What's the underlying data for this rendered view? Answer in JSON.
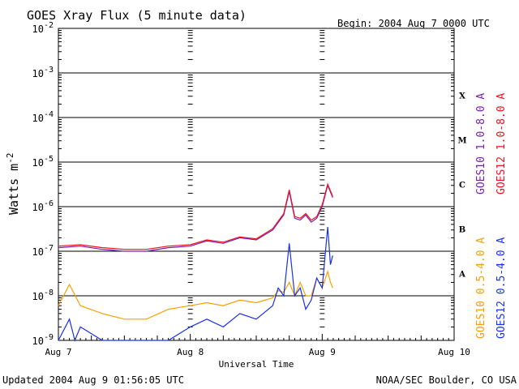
{
  "header": {
    "title": "GOES Xray Flux (5 minute data)",
    "begin": "Begin:  2004 Aug 7 0000 UTC"
  },
  "footer": {
    "updated": "Updated 2004 Aug  9 01:56:05 UTC",
    "source": "NOAA/SEC Boulder, CO USA"
  },
  "colors": {
    "goes10_long": "#7a1fb5",
    "goes12_long": "#e8141e",
    "goes10_short": "#f5a100",
    "goes12_short": "#1932e6"
  },
  "chart_data": {
    "type": "line",
    "title": "GOES Xray Flux (5 minute data)",
    "xlabel": "Universal Time",
    "ylabel": "Watts m-2",
    "yscale": "log",
    "ylim": [
      1e-09,
      0.01
    ],
    "xlim": [
      "2004-08-07",
      "2004-08-10"
    ],
    "x_ticks": [
      "Aug 7",
      "Aug 8",
      "Aug 9",
      "Aug 10"
    ],
    "y_ticks": [
      {
        "base": "10",
        "exp": "-9"
      },
      {
        "base": "10",
        "exp": "-8"
      },
      {
        "base": "10",
        "exp": "-7"
      },
      {
        "base": "10",
        "exp": "-6"
      },
      {
        "base": "10",
        "exp": "-5"
      },
      {
        "base": "10",
        "exp": "-4"
      },
      {
        "base": "10",
        "exp": "-3"
      },
      {
        "base": "10",
        "exp": "-2"
      }
    ],
    "flare_classes": [
      {
        "label": "A",
        "flux": 3.16e-08
      },
      {
        "label": "B",
        "flux": 3.16e-07
      },
      {
        "label": "C",
        "flux": 3.16e-06
      },
      {
        "label": "M",
        "flux": 3.16e-05
      },
      {
        "label": "X",
        "flux": 0.000316
      }
    ],
    "grid": true,
    "legend_position": "right, vertical",
    "series": [
      {
        "name": "GOES10 1.0-8.0 A",
        "x": [
          "2004-08-07 00:00",
          "2004-08-07 04:00",
          "2004-08-07 08:00",
          "2004-08-07 12:00",
          "2004-08-07 16:00",
          "2004-08-07 20:00",
          "2004-08-08 00:00",
          "2004-08-08 03:00",
          "2004-08-08 06:00",
          "2004-08-08 09:00",
          "2004-08-08 12:00",
          "2004-08-08 15:00",
          "2004-08-08 17:00",
          "2004-08-08 18:00",
          "2004-08-08 19:00",
          "2004-08-08 20:00",
          "2004-08-08 21:00",
          "2004-08-08 22:00",
          "2004-08-08 23:00",
          "2004-08-09 00:00",
          "2004-08-09 01:00",
          "2004-08-09 01:55"
        ],
        "y": [
          1.2e-07,
          1.3e-07,
          1.1e-07,
          1e-07,
          1e-07,
          1.2e-07,
          1.3e-07,
          1.7e-07,
          1.5e-07,
          2e-07,
          1.8e-07,
          3e-07,
          6.5e-07,
          2.2e-06,
          5.5e-07,
          5e-07,
          6.5e-07,
          4.5e-07,
          5.5e-07,
          1e-06,
          3e-06,
          1.6e-06
        ]
      },
      {
        "name": "GOES12 1.0-8.0 A",
        "x": [
          "2004-08-07 00:00",
          "2004-08-07 04:00",
          "2004-08-07 08:00",
          "2004-08-07 12:00",
          "2004-08-07 16:00",
          "2004-08-07 20:00",
          "2004-08-08 00:00",
          "2004-08-08 03:00",
          "2004-08-08 06:00",
          "2004-08-08 09:00",
          "2004-08-08 12:00",
          "2004-08-08 15:00",
          "2004-08-08 17:00",
          "2004-08-08 18:00",
          "2004-08-08 19:00",
          "2004-08-08 20:00",
          "2004-08-08 21:00",
          "2004-08-08 22:00",
          "2004-08-08 23:00",
          "2004-08-09 00:00",
          "2004-08-09 01:00",
          "2004-08-09 01:55"
        ],
        "y": [
          1.3e-07,
          1.4e-07,
          1.2e-07,
          1.1e-07,
          1.1e-07,
          1.3e-07,
          1.4e-07,
          1.8e-07,
          1.6e-07,
          2.1e-07,
          1.9e-07,
          3.2e-07,
          7e-07,
          2.4e-06,
          6e-07,
          5.5e-07,
          7e-07,
          5e-07,
          6e-07,
          1.1e-06,
          3.2e-06,
          1.7e-06
        ]
      },
      {
        "name": "GOES10 0.5-4.0 A",
        "x": [
          "2004-08-07 00:00",
          "2004-08-07 02:00",
          "2004-08-07 04:00",
          "2004-08-07 08:00",
          "2004-08-07 12:00",
          "2004-08-07 16:00",
          "2004-08-07 20:00",
          "2004-08-08 00:00",
          "2004-08-08 03:00",
          "2004-08-08 06:00",
          "2004-08-08 09:00",
          "2004-08-08 12:00",
          "2004-08-08 15:00",
          "2004-08-08 16:00",
          "2004-08-08 17:00",
          "2004-08-08 18:00",
          "2004-08-08 19:00",
          "2004-08-08 20:00",
          "2004-08-08 21:00",
          "2004-08-08 22:00",
          "2004-08-08 23:00",
          "2004-08-09 00:00",
          "2004-08-09 01:00",
          "2004-08-09 01:30",
          "2004-08-09 01:55"
        ],
        "y": [
          6e-09,
          1.8e-08,
          6e-09,
          4e-09,
          3e-09,
          3e-09,
          5e-09,
          6e-09,
          7e-09,
          6e-09,
          8e-09,
          7e-09,
          9e-09,
          1.3e-08,
          1.2e-08,
          2e-08,
          1e-08,
          2e-08,
          1e-08,
          1e-08,
          2.5e-08,
          1.5e-08,
          3.5e-08,
          2e-08,
          1.5e-08
        ]
      },
      {
        "name": "GOES12 0.5-4.0 A",
        "x": [
          "2004-08-07 00:00",
          "2004-08-07 02:00",
          "2004-08-07 03:00",
          "2004-08-07 04:00",
          "2004-08-07 08:00",
          "2004-08-07 12:00",
          "2004-08-07 16:00",
          "2004-08-07 20:00",
          "2004-08-08 00:00",
          "2004-08-08 03:00",
          "2004-08-08 06:00",
          "2004-08-08 09:00",
          "2004-08-08 12:00",
          "2004-08-08 15:00",
          "2004-08-08 16:00",
          "2004-08-08 17:00",
          "2004-08-08 18:00",
          "2004-08-08 19:00",
          "2004-08-08 20:00",
          "2004-08-08 21:00",
          "2004-08-08 22:00",
          "2004-08-08 23:00",
          "2004-08-09 00:00",
          "2004-08-09 01:00",
          "2004-08-09 01:30",
          "2004-08-09 01:55"
        ],
        "y": [
          1e-09,
          3e-09,
          1e-09,
          2e-09,
          1e-09,
          1e-09,
          1e-09,
          1e-09,
          2e-09,
          3e-09,
          2e-09,
          4e-09,
          3e-09,
          6e-09,
          1.5e-08,
          1e-08,
          1.5e-07,
          1e-08,
          1.5e-08,
          5e-09,
          8e-09,
          2.5e-08,
          1.5e-08,
          3.5e-07,
          5e-08,
          8e-08
        ]
      }
    ]
  }
}
